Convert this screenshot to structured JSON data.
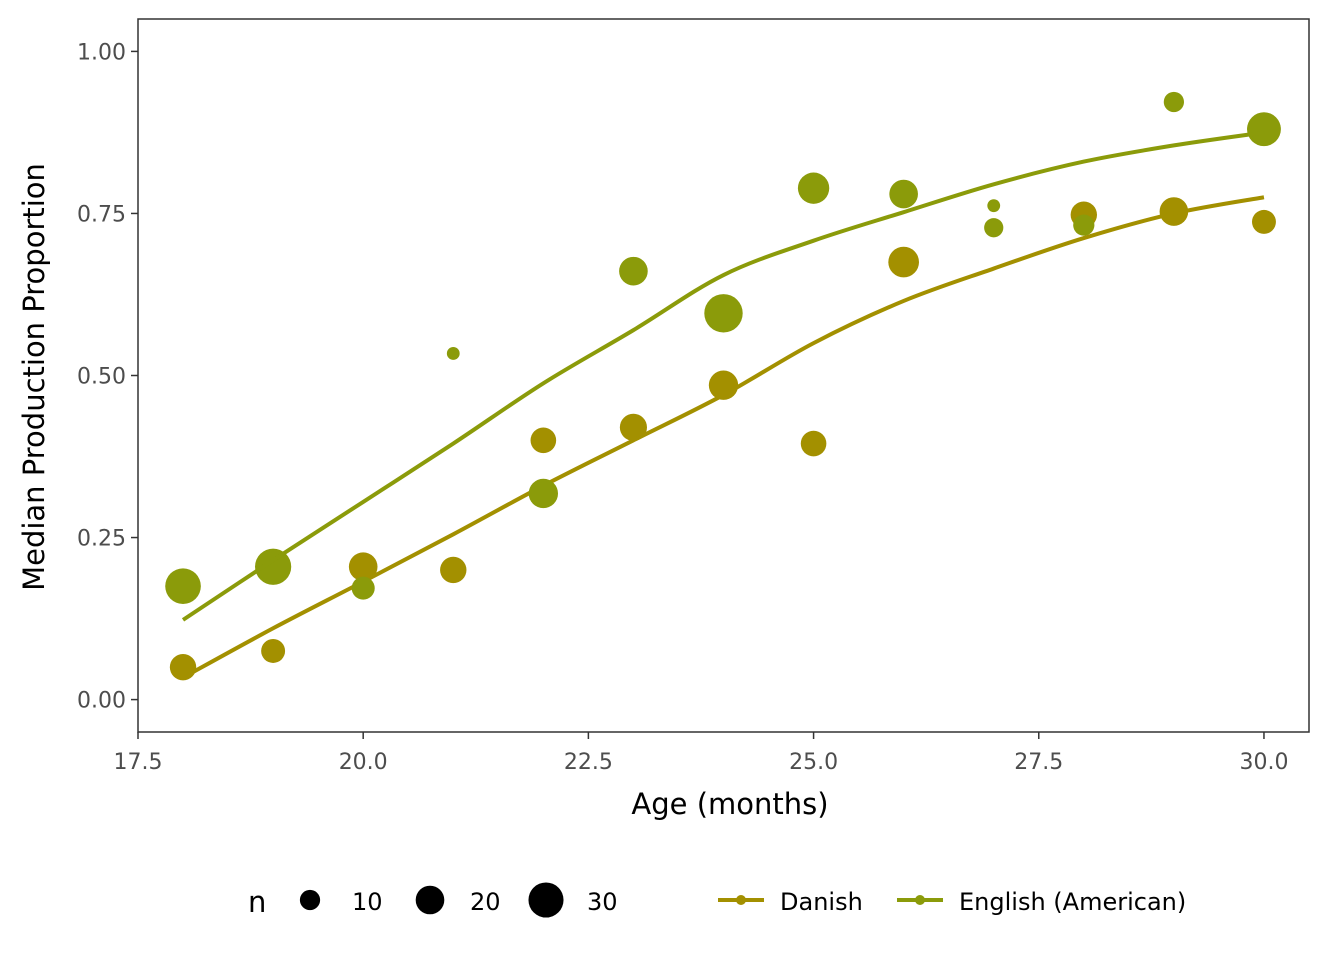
{
  "chart_data": {
    "type": "scatter",
    "title": "",
    "xlabel": "Age (months)",
    "ylabel": "Median Production Proportion",
    "xlim": [
      17.5,
      30.5
    ],
    "ylim": [
      -0.05,
      1.05
    ],
    "x_ticks": [
      "17.5",
      "20.0",
      "22.5",
      "25.0",
      "27.5",
      "30.0"
    ],
    "y_ticks": [
      "0.00",
      "0.25",
      "0.50",
      "0.75",
      "1.00"
    ],
    "grid": false,
    "legend_position": "bottom",
    "size_legend": {
      "title": "n",
      "items": [
        {
          "label": "10",
          "n": 10
        },
        {
          "label": "20",
          "n": 20
        },
        {
          "label": "30",
          "n": 30
        }
      ]
    },
    "series": [
      {
        "name": "Danish",
        "color": "#A39000",
        "points": [
          {
            "x": 18,
            "y": 0.05,
            "n": 17
          },
          {
            "x": 19,
            "y": 0.075,
            "n": 14
          },
          {
            "x": 20,
            "y": 0.205,
            "n": 20
          },
          {
            "x": 21,
            "y": 0.2,
            "n": 17
          },
          {
            "x": 22,
            "y": 0.4,
            "n": 16
          },
          {
            "x": 23,
            "y": 0.42,
            "n": 18
          },
          {
            "x": 24,
            "y": 0.485,
            "n": 21
          },
          {
            "x": 25,
            "y": 0.395,
            "n": 16
          },
          {
            "x": 26,
            "y": 0.675,
            "n": 23
          },
          {
            "x": 28,
            "y": 0.748,
            "n": 17
          },
          {
            "x": 29,
            "y": 0.753,
            "n": 20
          },
          {
            "x": 30,
            "y": 0.737,
            "n": 14
          }
        ],
        "smooth": [
          {
            "x": 18,
            "y": 0.034
          },
          {
            "x": 19,
            "y": 0.11
          },
          {
            "x": 20,
            "y": 0.182
          },
          {
            "x": 21,
            "y": 0.255
          },
          {
            "x": 22,
            "y": 0.33
          },
          {
            "x": 23,
            "y": 0.4
          },
          {
            "x": 24,
            "y": 0.47
          },
          {
            "x": 25,
            "y": 0.55
          },
          {
            "x": 26,
            "y": 0.615
          },
          {
            "x": 27,
            "y": 0.665
          },
          {
            "x": 28,
            "y": 0.712
          },
          {
            "x": 29,
            "y": 0.75
          },
          {
            "x": 30,
            "y": 0.775
          }
        ]
      },
      {
        "name": "English (American)",
        "color": "#8B9B0A",
        "points": [
          {
            "x": 18,
            "y": 0.175,
            "n": 31
          },
          {
            "x": 19,
            "y": 0.205,
            "n": 32
          },
          {
            "x": 20,
            "y": 0.172,
            "n": 13
          },
          {
            "x": 21,
            "y": 0.534,
            "n": 4
          },
          {
            "x": 22,
            "y": 0.318,
            "n": 21
          },
          {
            "x": 23,
            "y": 0.661,
            "n": 20
          },
          {
            "x": 24,
            "y": 0.596,
            "n": 36
          },
          {
            "x": 25,
            "y": 0.789,
            "n": 24
          },
          {
            "x": 26,
            "y": 0.78,
            "n": 20
          },
          {
            "x": 27,
            "y": 0.762,
            "n": 4
          },
          {
            "x": 27,
            "y": 0.728,
            "n": 9
          },
          {
            "x": 28,
            "y": 0.732,
            "n": 11
          },
          {
            "x": 29,
            "y": 0.922,
            "n": 10
          },
          {
            "x": 30,
            "y": 0.88,
            "n": 28
          }
        ],
        "smooth": [
          {
            "x": 18,
            "y": 0.123
          },
          {
            "x": 19,
            "y": 0.215
          },
          {
            "x": 20,
            "y": 0.305
          },
          {
            "x": 21,
            "y": 0.395
          },
          {
            "x": 22,
            "y": 0.488
          },
          {
            "x": 23,
            "y": 0.57
          },
          {
            "x": 24,
            "y": 0.655
          },
          {
            "x": 25,
            "y": 0.708
          },
          {
            "x": 26,
            "y": 0.752
          },
          {
            "x": 27,
            "y": 0.795
          },
          {
            "x": 28,
            "y": 0.83
          },
          {
            "x": 29,
            "y": 0.855
          },
          {
            "x": 30,
            "y": 0.875
          }
        ]
      }
    ]
  }
}
